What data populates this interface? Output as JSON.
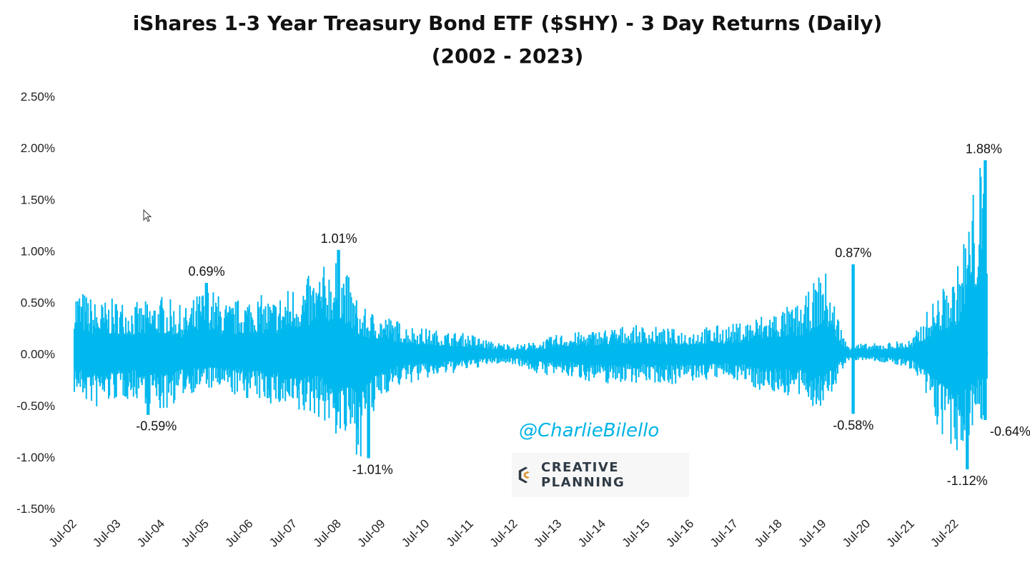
{
  "chart_data": {
    "type": "area",
    "title": "iShares 1-3 Year Treasury Bond ETF ($SHY) -  3 Day Returns (Daily)",
    "subtitle": "(2002 - 2023)",
    "xlabel": "",
    "ylabel": "",
    "x_tick_labels": [
      "Jul-02",
      "Jul-03",
      "Jul-04",
      "Jul-05",
      "Jul-06",
      "Jul-07",
      "Jul-08",
      "Jul-09",
      "Jul-10",
      "Jul-11",
      "Jul-12",
      "Jul-13",
      "Jul-14",
      "Jul-15",
      "Jul-16",
      "Jul-17",
      "Jul-18",
      "Jul-19",
      "Jul-20",
      "Jul-21",
      "Jul-22"
    ],
    "y_tick_labels": [
      "2.50%",
      "2.00%",
      "1.50%",
      "1.00%",
      "0.50%",
      "0.00%",
      "-0.50%",
      "-1.00%",
      "-1.50%"
    ],
    "ylim": [
      -1.5,
      2.5
    ],
    "y_unit": "%",
    "grid": false,
    "legend": "none",
    "series_color": "#00b8ee",
    "series": [
      {
        "x": [
          "Jul-02",
          "Jan-03",
          "Jul-03",
          "Jan-04",
          "Jul-04",
          "Jan-05",
          "Jul-05",
          "Jan-06",
          "Jul-06",
          "Jan-07",
          "Jul-07",
          "Jan-08",
          "Jul-08",
          "Jan-09",
          "Jul-09",
          "Jan-10",
          "Jul-10",
          "Jan-11",
          "Jul-11",
          "Jan-12",
          "Jul-12",
          "Jan-13",
          "Jul-13",
          "Jan-14",
          "Jul-14",
          "Jan-15",
          "Jul-15",
          "Jan-16",
          "Jul-16",
          "Jan-17",
          "Jul-17",
          "Jan-18",
          "Jul-18",
          "Jan-19",
          "Jul-19",
          "Jan-20",
          "Jul-20",
          "Jan-21",
          "Jul-21",
          "Jan-22",
          "Jul-22",
          "Jan-23"
        ],
        "high": [
          0.7,
          0.52,
          0.55,
          0.5,
          0.58,
          0.45,
          0.69,
          0.5,
          0.6,
          0.55,
          0.7,
          0.8,
          1.01,
          0.45,
          0.4,
          0.3,
          0.25,
          0.22,
          0.2,
          0.12,
          0.1,
          0.12,
          0.2,
          0.22,
          0.25,
          0.28,
          0.28,
          0.25,
          0.25,
          0.28,
          0.3,
          0.38,
          0.45,
          0.5,
          0.87,
          0.12,
          0.1,
          0.12,
          0.15,
          0.55,
          0.8,
          1.88
        ],
        "low": [
          -0.4,
          -0.55,
          -0.45,
          -0.45,
          -0.59,
          -0.4,
          -0.35,
          -0.4,
          -0.45,
          -0.5,
          -0.65,
          -0.6,
          -0.85,
          -1.01,
          -0.4,
          -0.3,
          -0.25,
          -0.2,
          -0.15,
          -0.1,
          -0.1,
          -0.2,
          -0.22,
          -0.25,
          -0.3,
          -0.28,
          -0.28,
          -0.3,
          -0.28,
          -0.25,
          -0.25,
          -0.35,
          -0.4,
          -0.45,
          -0.58,
          -0.08,
          -0.06,
          -0.1,
          -0.15,
          -0.65,
          -1.12,
          -0.64
        ]
      }
    ],
    "annotations": [
      {
        "x": "Jul-05",
        "value": 0.69,
        "label": "0.69%"
      },
      {
        "x": "Jul-08",
        "value": 1.01,
        "label": "1.01%"
      },
      {
        "x": "Mar-20",
        "value": 0.87,
        "label": "0.87%"
      },
      {
        "x": "Mar-23",
        "value": 1.88,
        "label": "1.88%"
      },
      {
        "x": "Mar-04",
        "value": -0.59,
        "label": "-0.59%"
      },
      {
        "x": "Mar-09",
        "value": -1.01,
        "label": "-1.01%"
      },
      {
        "x": "Mar-20",
        "value": -0.58,
        "label": "-0.58%"
      },
      {
        "x": "Oct-22",
        "value": -1.12,
        "label": "-1.12%"
      },
      {
        "x": "Mar-23",
        "value": -0.64,
        "label": "-0.64%"
      }
    ]
  },
  "watermark": "@CharlieBilello",
  "logo": {
    "text": "CREATIVE PLANNING",
    "icon": "creative-planning-c-icon"
  },
  "cursor_icon": "mouse-pointer-icon"
}
